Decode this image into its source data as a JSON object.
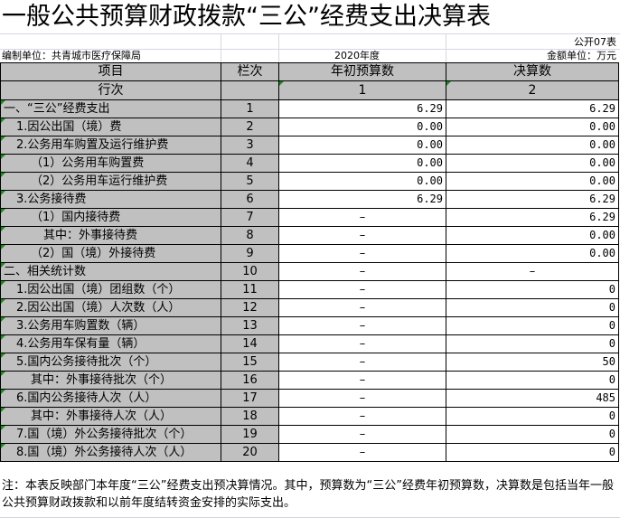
{
  "title": "一般公共预算财政拨款“三公”经费支出决算表",
  "table_code": "公开07表",
  "unit_label": "编制单位：共青城市医疗保障局",
  "year": "2020年度",
  "amount_unit": "金额单位：万元",
  "headers": {
    "item": "项目",
    "col_no": "栏次",
    "budget": "年初预算数",
    "final": "决算数",
    "row_no": "行次",
    "budget_idx": "1",
    "final_idx": "2"
  },
  "rows": [
    {
      "label": "一、“三公”经费支出",
      "no": "1",
      "budget": "6.29",
      "final": "6.29",
      "indent": 0
    },
    {
      "label": "1.因公出国（境）费",
      "no": "2",
      "budget": "0.00",
      "final": "0.00",
      "indent": 1
    },
    {
      "label": "2.公务用车购置及运行维护费",
      "no": "3",
      "budget": "0.00",
      "final": "0.00",
      "indent": 1
    },
    {
      "label": "（1）公务用车购置费",
      "no": "4",
      "budget": "0.00",
      "final": "0.00",
      "indent": 2
    },
    {
      "label": "（2）公务用车运行维护费",
      "no": "5",
      "budget": "0.00",
      "final": "0.00",
      "indent": 2
    },
    {
      "label": "3.公务接待费",
      "no": "6",
      "budget": "6.29",
      "final": "6.29",
      "indent": 1
    },
    {
      "label": "（1）国内接待费",
      "no": "7",
      "budget": "–",
      "final": "6.29",
      "indent": 2
    },
    {
      "label": "其中：外事接待费",
      "no": "8",
      "budget": "–",
      "final": "0.00",
      "indent": 3
    },
    {
      "label": "（2）国（境）外接待费",
      "no": "9",
      "budget": "–",
      "final": "0.00",
      "indent": 2
    },
    {
      "label": "二、相关统计数",
      "no": "10",
      "budget": "–",
      "final": "–",
      "indent": 0
    },
    {
      "label": "1.因公出国（境）团组数（个）",
      "no": "11",
      "budget": "–",
      "final": "0",
      "indent": 1
    },
    {
      "label": "2.因公出国（境）人次数（人）",
      "no": "12",
      "budget": "–",
      "final": "0",
      "indent": 1
    },
    {
      "label": "3.公务用车购置数（辆）",
      "no": "13",
      "budget": "–",
      "final": "0",
      "indent": 1
    },
    {
      "label": "4.公务用车保有量（辆）",
      "no": "14",
      "budget": "–",
      "final": "0",
      "indent": 1
    },
    {
      "label": "5.国内公务接待批次（个）",
      "no": "15",
      "budget": "–",
      "final": "50",
      "indent": 1
    },
    {
      "label": "其中：外事接待批次（个）",
      "no": "16",
      "budget": "–",
      "final": "0",
      "indent": 2
    },
    {
      "label": "6.国内公务接待人次（人）",
      "no": "17",
      "budget": "–",
      "final": "485",
      "indent": 1
    },
    {
      "label": "其中：外事接待人次（人）",
      "no": "18",
      "budget": "–",
      "final": "0",
      "indent": 2
    },
    {
      "label": "7.国（境）外公务接待批次（个）",
      "no": "19",
      "budget": "–",
      "final": "0",
      "indent": 1
    },
    {
      "label": "8.国（境）外公务接待人次（人）",
      "no": "20",
      "budget": "–",
      "final": "0",
      "indent": 1
    }
  ],
  "note": "注：本表反映部门本年度“三公”经费支出预决算情况。其中，预算数为“三公”经费年初预算数，决算数是包括当年一般公共预算财政拨款和以前年度结转资金安排的实际支出。"
}
